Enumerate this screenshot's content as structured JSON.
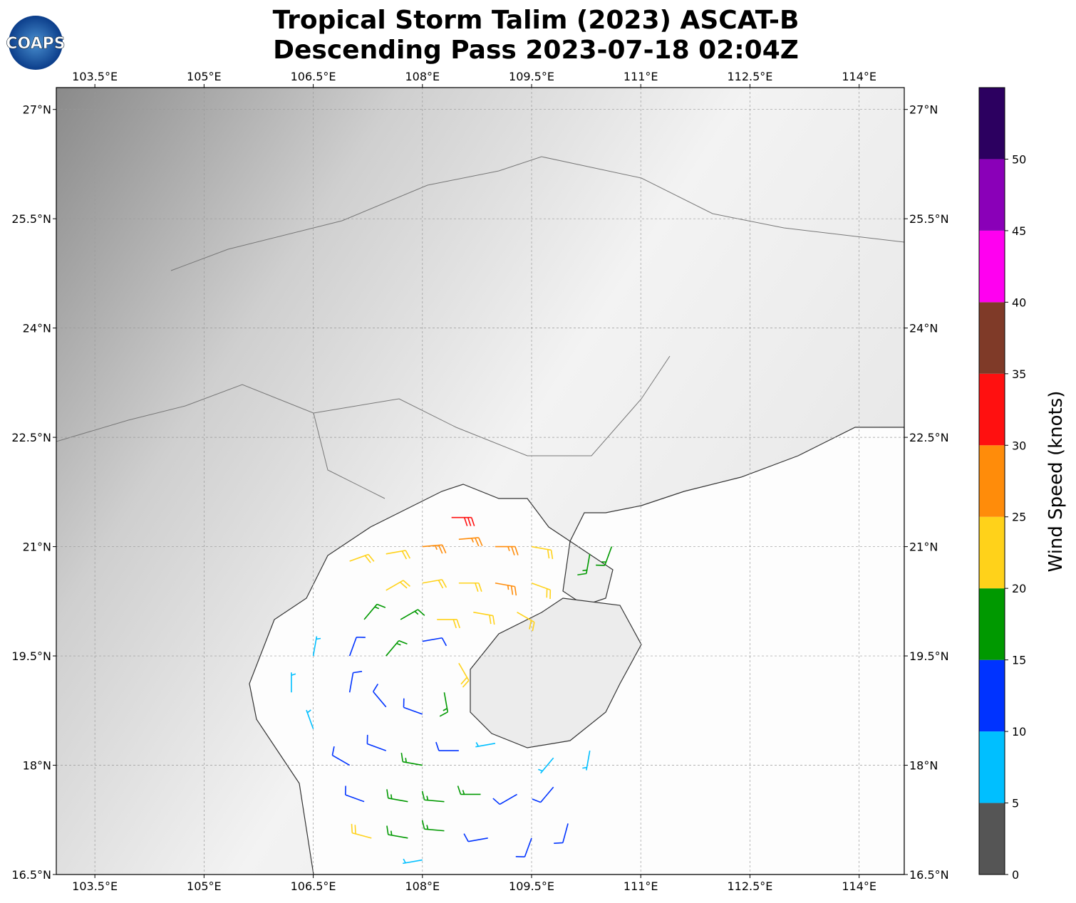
{
  "chart_data": {
    "type": "barbs",
    "title": "Tropical Storm Talim (2023) ASCAT-B",
    "subtitle": "Descending Pass 2023-07-18 02:04Z",
    "logo_text": "COAPS",
    "xlim": [
      102.97,
      114.62
    ],
    "ylim": [
      16.5,
      27.3
    ],
    "xticks": [
      {
        "value": 103.5,
        "label": "103.5°E"
      },
      {
        "value": 105,
        "label": "105°E"
      },
      {
        "value": 106.5,
        "label": "106.5°E"
      },
      {
        "value": 108,
        "label": "108°E"
      },
      {
        "value": 109.5,
        "label": "109.5°E"
      },
      {
        "value": 111,
        "label": "111°E"
      },
      {
        "value": 112.5,
        "label": "112.5°E"
      },
      {
        "value": 114,
        "label": "114°E"
      }
    ],
    "yticks": [
      {
        "value": 16.5,
        "label": "16.5°N"
      },
      {
        "value": 18,
        "label": "18°N"
      },
      {
        "value": 19.5,
        "label": "19.5°N"
      },
      {
        "value": 21,
        "label": "21°N"
      },
      {
        "value": 22.5,
        "label": "22.5°N"
      },
      {
        "value": 24,
        "label": "24°N"
      },
      {
        "value": 25.5,
        "label": "25.5°N"
      },
      {
        "value": 27,
        "label": "27°N"
      }
    ],
    "grid": true,
    "colorbar": {
      "label": "Wind Speed (knots)",
      "lim": [
        0,
        55
      ],
      "bounds": [
        0,
        5,
        10,
        15,
        20,
        25,
        30,
        35,
        40,
        45,
        50,
        55
      ],
      "colors": [
        "#555555",
        "#00bfff",
        "#0033ff",
        "#009900",
        "#ffd21a",
        "#ff8c0a",
        "#ff1010",
        "#7f3a28",
        "#ff00f0",
        "#8a00b8",
        "#2c0060"
      ],
      "ticks": [
        0,
        5,
        10,
        15,
        20,
        25,
        30,
        35,
        40,
        45,
        50
      ]
    },
    "barbs": [
      {
        "lon": 107.0,
        "lat": 20.8,
        "speed": 22,
        "dir": 70
      },
      {
        "lon": 107.5,
        "lat": 20.9,
        "speed": 23,
        "dir": 80
      },
      {
        "lon": 108.0,
        "lat": 21.0,
        "speed": 26,
        "dir": 85
      },
      {
        "lon": 108.5,
        "lat": 21.1,
        "speed": 28,
        "dir": 85
      },
      {
        "lon": 108.4,
        "lat": 21.4,
        "speed": 31,
        "dir": 90
      },
      {
        "lon": 109.0,
        "lat": 21.0,
        "speed": 27,
        "dir": 90
      },
      {
        "lon": 109.5,
        "lat": 21.0,
        "speed": 24,
        "dir": 100
      },
      {
        "lon": 107.5,
        "lat": 20.4,
        "speed": 21,
        "dir": 60
      },
      {
        "lon": 108.0,
        "lat": 20.5,
        "speed": 23,
        "dir": 80
      },
      {
        "lon": 108.5,
        "lat": 20.5,
        "speed": 24,
        "dir": 90
      },
      {
        "lon": 109.0,
        "lat": 20.5,
        "speed": 26,
        "dir": 100
      },
      {
        "lon": 109.5,
        "lat": 20.5,
        "speed": 23,
        "dir": 110
      },
      {
        "lon": 107.2,
        "lat": 20.0,
        "speed": 19,
        "dir": 40
      },
      {
        "lon": 107.7,
        "lat": 20.0,
        "speed": 18,
        "dir": 60
      },
      {
        "lon": 108.2,
        "lat": 20.0,
        "speed": 22,
        "dir": 90
      },
      {
        "lon": 108.7,
        "lat": 20.1,
        "speed": 23,
        "dir": 100
      },
      {
        "lon": 109.3,
        "lat": 20.1,
        "speed": 22,
        "dir": 120
      },
      {
        "lon": 110.3,
        "lat": 20.9,
        "speed": 17,
        "dir": 190
      },
      {
        "lon": 110.6,
        "lat": 21.0,
        "speed": 16,
        "dir": 200
      },
      {
        "lon": 107.0,
        "lat": 19.5,
        "speed": 13,
        "dir": 20
      },
      {
        "lon": 107.5,
        "lat": 19.5,
        "speed": 15,
        "dir": 40
      },
      {
        "lon": 108.0,
        "lat": 19.7,
        "speed": 13,
        "dir": 80
      },
      {
        "lon": 108.5,
        "lat": 19.4,
        "speed": 22,
        "dir": 150
      },
      {
        "lon": 108.3,
        "lat": 19.0,
        "speed": 17,
        "dir": 170
      },
      {
        "lon": 106.5,
        "lat": 19.5,
        "speed": 8,
        "dir": 10
      },
      {
        "lon": 106.2,
        "lat": 19.0,
        "speed": 9,
        "dir": 0
      },
      {
        "lon": 106.5,
        "lat": 18.5,
        "speed": 8,
        "dir": 340
      },
      {
        "lon": 107.0,
        "lat": 19.0,
        "speed": 11,
        "dir": 10
      },
      {
        "lon": 107.5,
        "lat": 18.8,
        "speed": 13,
        "dir": 320
      },
      {
        "lon": 108.0,
        "lat": 18.7,
        "speed": 12,
        "dir": 290
      },
      {
        "lon": 107.0,
        "lat": 18.0,
        "speed": 12,
        "dir": 300
      },
      {
        "lon": 107.5,
        "lat": 18.2,
        "speed": 14,
        "dir": 290
      },
      {
        "lon": 108.0,
        "lat": 18.0,
        "speed": 16,
        "dir": 280
      },
      {
        "lon": 108.5,
        "lat": 18.2,
        "speed": 14,
        "dir": 270
      },
      {
        "lon": 109.0,
        "lat": 18.3,
        "speed": 9,
        "dir": 260
      },
      {
        "lon": 107.2,
        "lat": 17.5,
        "speed": 14,
        "dir": 290
      },
      {
        "lon": 107.8,
        "lat": 17.5,
        "speed": 17,
        "dir": 280
      },
      {
        "lon": 108.3,
        "lat": 17.5,
        "speed": 18,
        "dir": 275
      },
      {
        "lon": 108.8,
        "lat": 17.6,
        "speed": 15,
        "dir": 270
      },
      {
        "lon": 109.3,
        "lat": 17.6,
        "speed": 13,
        "dir": 240
      },
      {
        "lon": 109.8,
        "lat": 17.7,
        "speed": 12,
        "dir": 220
      },
      {
        "lon": 107.3,
        "lat": 17.0,
        "speed": 21,
        "dir": 285
      },
      {
        "lon": 107.8,
        "lat": 17.0,
        "speed": 18,
        "dir": 280
      },
      {
        "lon": 108.3,
        "lat": 17.1,
        "speed": 16,
        "dir": 275
      },
      {
        "lon": 108.9,
        "lat": 17.0,
        "speed": 12,
        "dir": 260
      },
      {
        "lon": 109.5,
        "lat": 17.0,
        "speed": 13,
        "dir": 200
      },
      {
        "lon": 110.0,
        "lat": 17.2,
        "speed": 11,
        "dir": 195
      },
      {
        "lon": 110.3,
        "lat": 18.2,
        "speed": 9,
        "dir": 190
      },
      {
        "lon": 109.8,
        "lat": 18.1,
        "speed": 7,
        "dir": 220
      },
      {
        "lon": 108.0,
        "lat": 16.7,
        "speed": 8,
        "dir": 260
      }
    ]
  }
}
